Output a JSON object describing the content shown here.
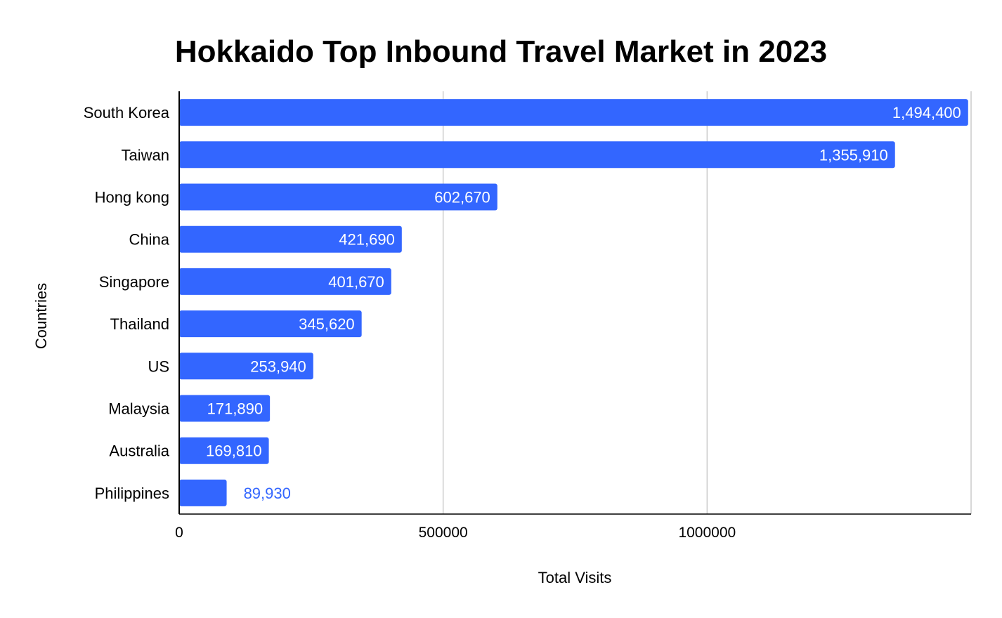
{
  "chart_data": {
    "type": "bar",
    "orientation": "horizontal",
    "title": "Hokkaido Top Inbound Travel Market in 2023",
    "xlabel": "Total Visits",
    "ylabel": "Countries",
    "categories": [
      "South Korea",
      "Taiwan",
      "Hong kong",
      "China",
      "Singapore",
      "Thailand",
      "US",
      "Malaysia",
      "Australia",
      "Philippines"
    ],
    "values": [
      1494400,
      1355910,
      602670,
      421690,
      401670,
      345620,
      253940,
      171890,
      169810,
      89930
    ],
    "data_labels": [
      "1,494,400",
      "1,355,910",
      "602,670",
      "421,690",
      "401,670",
      "345,620",
      "253,940",
      "171,890",
      "169,810",
      "89,930"
    ],
    "x_ticks": [
      "0",
      "500000",
      "1000000"
    ],
    "x_tick_values": [
      0,
      500000,
      1000000
    ],
    "xlim": [
      0,
      1500000
    ],
    "grid": "vertical",
    "legend": "none",
    "bar_color": "#3366ff",
    "label_inside_color": "#ffffff",
    "label_outside_color": "#3366ff"
  }
}
